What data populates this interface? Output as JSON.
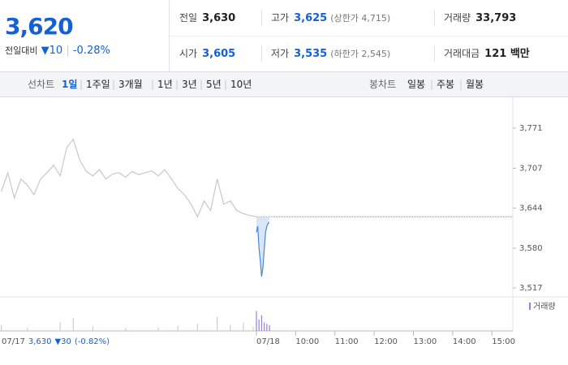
{
  "quote": {
    "price": "3,620",
    "change_label": "전일대비",
    "change": "10",
    "change_pct": "-0.28%"
  },
  "stats": [
    [
      {
        "label": "전일",
        "value": "3,630"
      },
      {
        "label": "고가",
        "value": "3,625",
        "extra": "(상한가 4,715)"
      },
      {
        "label": "거래량",
        "value": "33,793"
      }
    ],
    [
      {
        "label": "시가",
        "value": "3,605"
      },
      {
        "label": "저가",
        "value": "3,535",
        "extra": "(하한가 2,545)"
      },
      {
        "label": "거래대금",
        "value": "121 백만"
      }
    ]
  ],
  "tabs": {
    "line_label": "선차트",
    "line": [
      "1일",
      "1주일",
      "3개월",
      "1년",
      "3년",
      "5년",
      "10년"
    ],
    "candle_label": "봉차트",
    "candle": [
      "일봉",
      "주봉",
      "월봉"
    ]
  },
  "chart_data": {
    "type": "line",
    "series": [
      {
        "color": "#c8c8c8",
        "x": [
          -390,
          -380,
          -370,
          -360,
          -350,
          -340,
          -330,
          -320,
          -310,
          -300,
          -290,
          -280,
          -270,
          -260,
          -250,
          -240,
          -230,
          -220,
          -210,
          -200,
          -190,
          -180,
          -170,
          -160,
          -150,
          -140,
          -130,
          -120,
          -110,
          -100,
          -90,
          -80,
          -70,
          -60,
          -50,
          -40,
          -30,
          -20,
          -10,
          0
        ],
        "values": [
          3670,
          3700,
          3660,
          3690,
          3680,
          3665,
          3690,
          3700,
          3712,
          3695,
          3740,
          3753,
          3720,
          3702,
          3695,
          3705,
          3690,
          3698,
          3700,
          3693,
          3702,
          3697,
          3700,
          3703,
          3695,
          3705,
          3690,
          3675,
          3665,
          3650,
          3630,
          3655,
          3640,
          3690,
          3650,
          3655,
          3640,
          3635,
          3632,
          3630
        ]
      },
      {
        "color": "#4a86d4",
        "fill": "#cfe0f6",
        "x": [
          0,
          2,
          4,
          6,
          8,
          10,
          12,
          14,
          16,
          18,
          20
        ],
        "values": [
          3605,
          3615,
          3580,
          3560,
          3535,
          3550,
          3580,
          3605,
          3615,
          3620,
          3620
        ]
      }
    ],
    "base_value": 3630,
    "volume": {
      "name": "거래량",
      "color": "#9b7fd4",
      "x": [
        -390,
        -350,
        -300,
        -280,
        -250,
        -200,
        -150,
        -120,
        -90,
        -60,
        -40,
        -20,
        -5,
        0,
        4,
        8,
        12,
        16,
        20
      ],
      "values": [
        20,
        12,
        30,
        45,
        15,
        10,
        12,
        18,
        25,
        50,
        22,
        28,
        15,
        70,
        40,
        55,
        30,
        25,
        20
      ]
    },
    "vlim": [
      0,
      100
    ],
    "xlim": [
      -392,
      392
    ],
    "xticks": [
      {
        "value": 0,
        "label": "07/18"
      },
      {
        "value": 60,
        "label": "10:00"
      },
      {
        "value": 120,
        "label": "11:00"
      },
      {
        "value": 180,
        "label": "12:00"
      },
      {
        "value": 240,
        "label": "13:00"
      },
      {
        "value": 300,
        "label": "14:00"
      },
      {
        "value": 360,
        "label": "15:00"
      }
    ],
    "ylim": [
      3504,
      3794
    ],
    "yticks": [
      {
        "value": 3771,
        "label": "3,771"
      },
      {
        "value": 3707,
        "label": "3,707"
      },
      {
        "value": 3644,
        "label": "3,644"
      },
      {
        "value": 3580,
        "label": "3,580"
      },
      {
        "value": 3517,
        "label": "3,517"
      }
    ],
    "footer": {
      "date": "07/17",
      "close": "3,630",
      "change": "▼30",
      "pct": "(-0.82%)"
    }
  }
}
